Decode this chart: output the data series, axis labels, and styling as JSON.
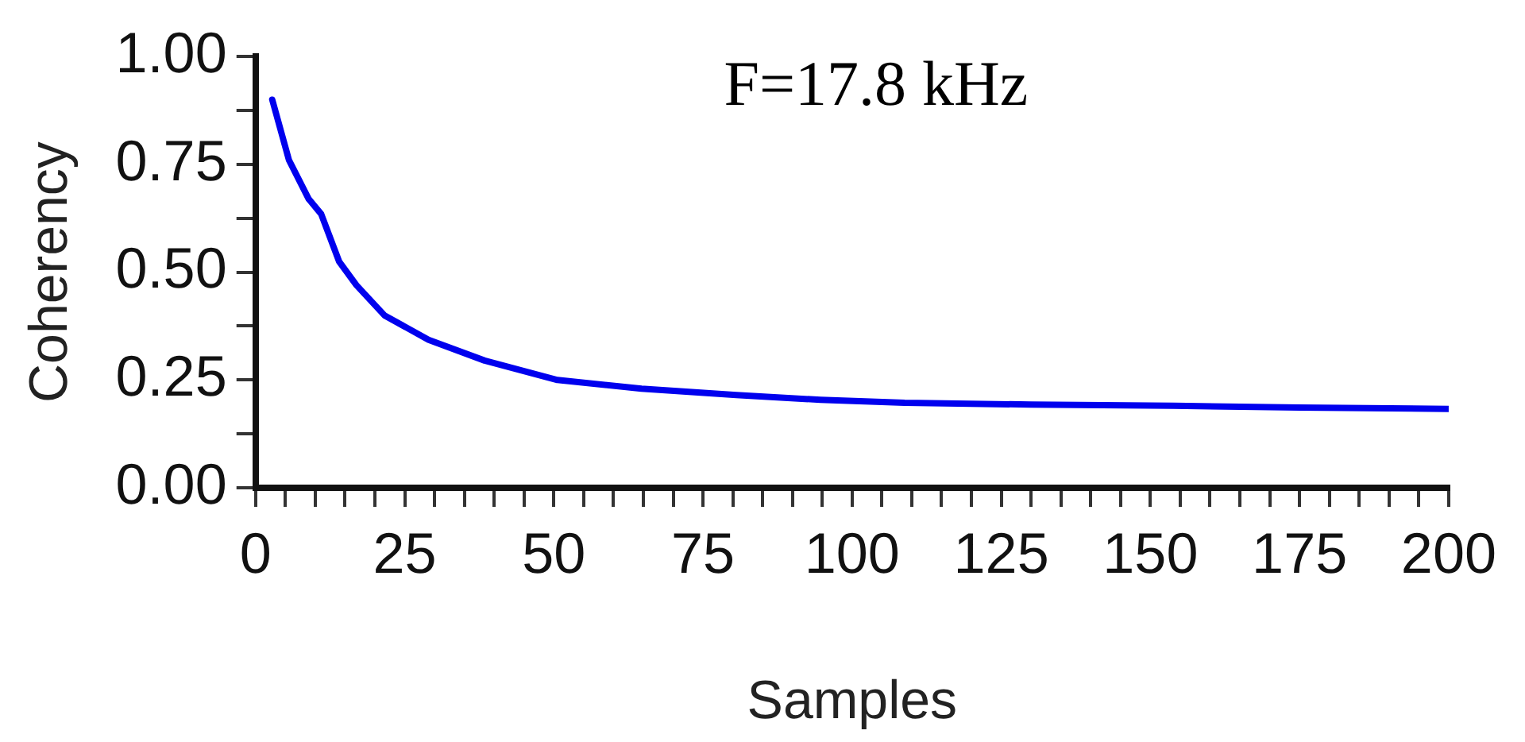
{
  "chart_data": {
    "type": "line",
    "xlabel": "Samples",
    "ylabel": "Coherency",
    "annotations": [
      "F=17.8 kHz"
    ],
    "series": [
      {
        "color": "#0000ee",
        "x": [
          2.8,
          5.6,
          8.9,
          11,
          14,
          16.9,
          21.6,
          29,
          38.4,
          50.6,
          64.7,
          80.6,
          94.7,
          108.8,
          130,
          153.9,
          175,
          200
        ],
        "values": [
          0.9,
          0.76,
          0.67,
          0.635,
          0.525,
          0.47,
          0.4,
          0.343,
          0.295,
          0.25,
          0.23,
          0.215,
          0.204,
          0.197,
          0.193,
          0.19,
          0.186,
          0.183
        ]
      }
    ],
    "xlim": [
      0,
      200
    ],
    "xticks": [
      0,
      {
        "value": 5,
        "label": null
      },
      {
        "value": 10,
        "label": null
      },
      {
        "value": 15,
        "label": null
      },
      {
        "value": 20,
        "label": null
      },
      25,
      {
        "value": 30,
        "label": null
      },
      {
        "value": 35,
        "label": null
      },
      {
        "value": 40,
        "label": null
      },
      {
        "value": 45,
        "label": null
      },
      50,
      {
        "value": 55,
        "label": null
      },
      {
        "value": 60,
        "label": null
      },
      {
        "value": 65,
        "label": null
      },
      {
        "value": 70,
        "label": null
      },
      75,
      {
        "value": 80,
        "label": null
      },
      {
        "value": 85,
        "label": null
      },
      {
        "value": 90,
        "label": null
      },
      {
        "value": 95,
        "label": null
      },
      100,
      {
        "value": 105,
        "label": null
      },
      {
        "value": 110,
        "label": null
      },
      {
        "value": 115,
        "label": null
      },
      {
        "value": 120,
        "label": null
      },
      125,
      {
        "value": 130,
        "label": null
      },
      {
        "value": 135,
        "label": null
      },
      {
        "value": 140,
        "label": null
      },
      {
        "value": 145,
        "label": null
      },
      150,
      {
        "value": 155,
        "label": null
      },
      {
        "value": 160,
        "label": null
      },
      {
        "value": 165,
        "label": null
      },
      {
        "value": 170,
        "label": null
      },
      175,
      {
        "value": 180,
        "label": null
      },
      {
        "value": 185,
        "label": null
      },
      {
        "value": 190,
        "label": null
      },
      {
        "value": 195,
        "label": null
      },
      200
    ],
    "ylim": [
      0,
      1
    ],
    "yticks": [
      {
        "value": 0,
        "label": "0.00"
      },
      {
        "value": 0.125,
        "label": null
      },
      {
        "value": 0.25,
        "label": "0.25"
      },
      {
        "value": 0.375,
        "label": null
      },
      {
        "value": 0.5,
        "label": "0.50"
      },
      {
        "value": 0.625,
        "label": null
      },
      {
        "value": 0.75,
        "label": "0.75"
      },
      {
        "value": 0.875,
        "label": null
      },
      {
        "value": 1,
        "label": "1.00"
      }
    ],
    "grid": false,
    "legend": false,
    "marker": "none",
    "line_style": "solid"
  }
}
